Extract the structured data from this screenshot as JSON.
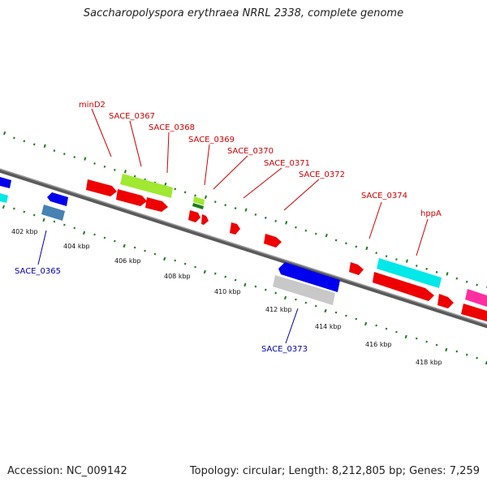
{
  "title": "Saccharopolyspora erythraea NRRL 2338, complete genome",
  "accession": "Accession: NC_009142",
  "genome_stats": "Topology: circular; Length: 8,212,805 bp; Genes: 7,259",
  "colors": {
    "backbone": "#808080",
    "tick": "#1e7a1e",
    "forward_label": "#cc0000",
    "reverse_label": "#0000aa",
    "red_gene": "#ee0000",
    "cyan_gene": "#00e8e8",
    "green_gene": "#a0e832",
    "blue_gene": "#0000ee",
    "steel_gene": "#4682b4",
    "gray_gene": "#c8c8c8",
    "pink_gene": "#ff2fa0",
    "dark_green_gene": "#1e7a1e"
  },
  "ruler_labels": [
    "402 kbp",
    "404 kbp",
    "406 kbp",
    "408 kbp",
    "410 kbp",
    "412 kbp",
    "414 kbp",
    "416 kbp",
    "418 kbp"
  ],
  "forward_gene_labels": [
    "minD2",
    "SACE_0367",
    "SACE_0368",
    "SACE_0369",
    "SACE_0370",
    "SACE_0371",
    "SACE_0372",
    "SACE_0374",
    "hppA"
  ],
  "reverse_gene_labels": [
    "SACE_0365",
    "SACE_0373"
  ]
}
